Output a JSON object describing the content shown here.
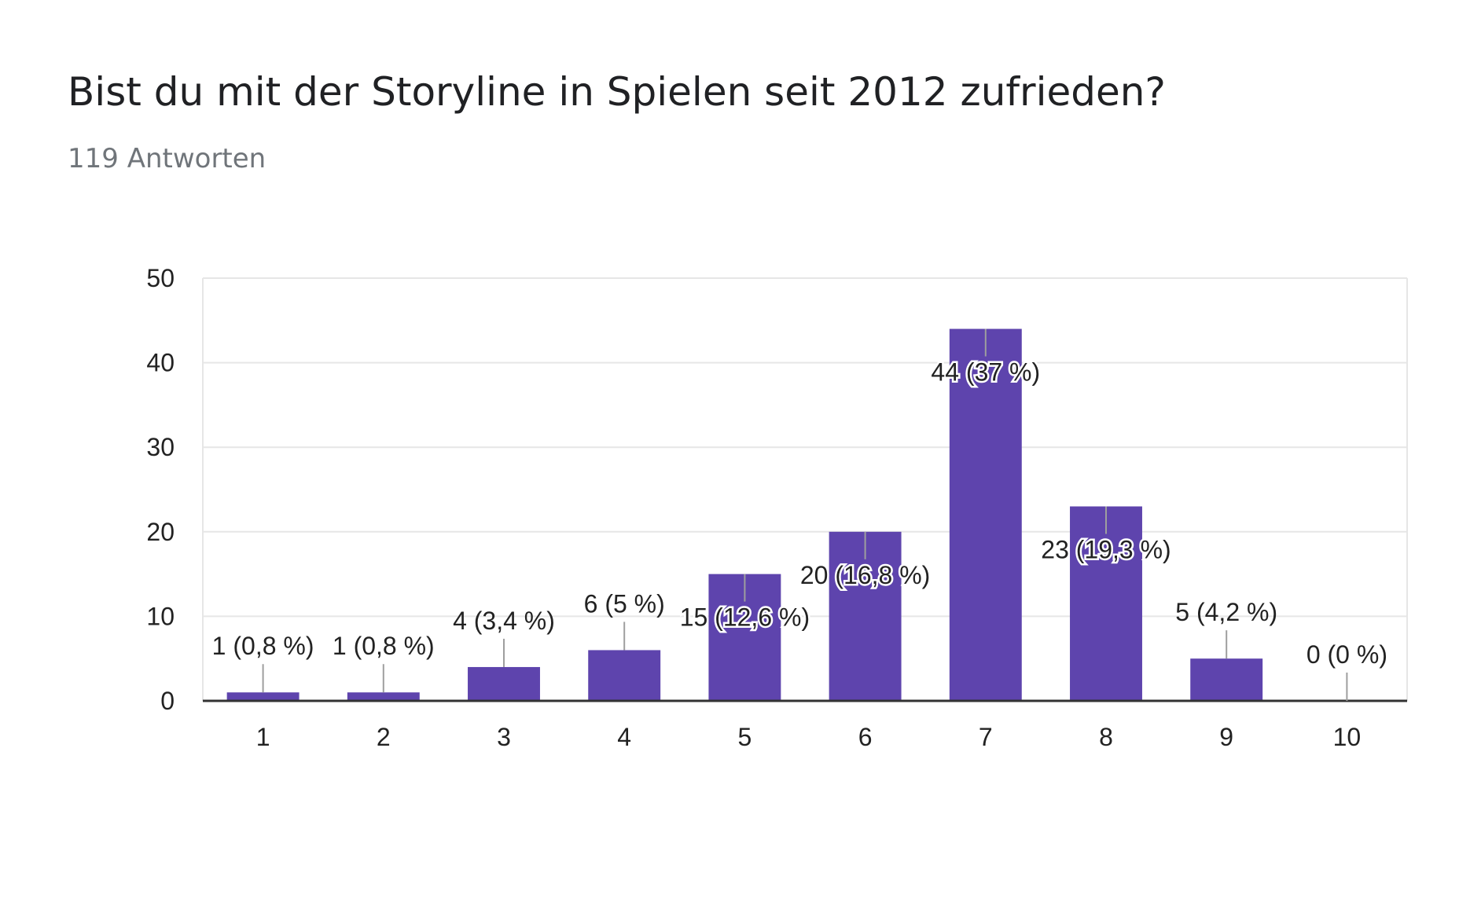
{
  "chart_data": {
    "type": "bar",
    "title": "Bist du mit der Storyline in Spielen seit 2012 zufrieden?",
    "subtitle": "119 Antworten",
    "categories": [
      "1",
      "2",
      "3",
      "4",
      "5",
      "6",
      "7",
      "8",
      "9",
      "10"
    ],
    "values": [
      1,
      1,
      4,
      6,
      15,
      20,
      44,
      23,
      5,
      0
    ],
    "data_labels": [
      "1 (0,8 %)",
      "1 (0,8 %)",
      "4 (3,4 %)",
      "6 (5 %)",
      "15 (12,6 %)",
      "20 (16,8 %)",
      "44 (37 %)",
      "23 (19,3 %)",
      "5 (4,2 %)",
      "0 (0 %)"
    ],
    "y_ticks": [
      "0",
      "10",
      "20",
      "30",
      "40",
      "50"
    ],
    "ylim": [
      0,
      50
    ],
    "xlabel": "",
    "ylabel": "",
    "grid": true,
    "bar_color": "#5e44ad",
    "gridline_color": "#e6e6e6",
    "axis_color": "#333333"
  }
}
